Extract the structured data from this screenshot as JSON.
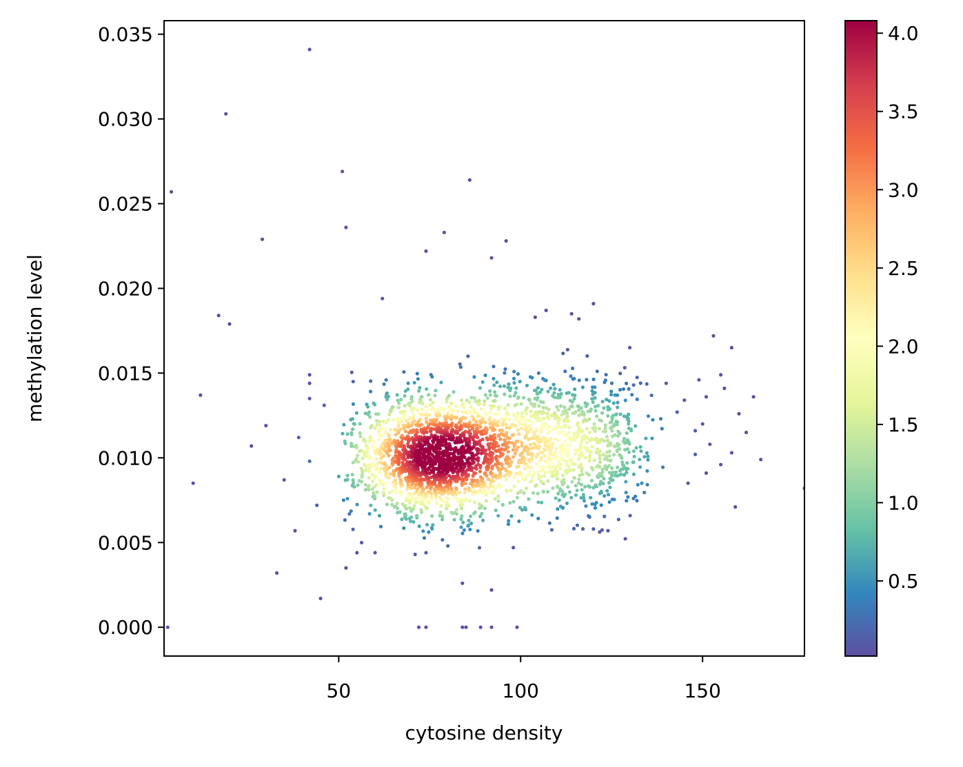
{
  "chart_data": {
    "type": "scatter",
    "title": "",
    "xlabel": "cytosine density",
    "ylabel": "methylation level",
    "xlim": [
      2,
      178
    ],
    "ylim": [
      -0.0017,
      0.0358
    ],
    "x_ticks": [
      50,
      100,
      150
    ],
    "y_ticks": [
      0.0,
      0.005,
      0.01,
      0.015,
      0.02,
      0.025,
      0.03,
      0.035
    ],
    "x_tick_labels": [
      "50",
      "100",
      "150"
    ],
    "y_tick_labels": [
      "0.000",
      "0.005",
      "0.010",
      "0.015",
      "0.020",
      "0.025",
      "0.030",
      "0.035"
    ],
    "grid": false,
    "colorbar": {
      "label": "",
      "colormap": "Spectral_r",
      "range": [
        0.02,
        4.08
      ],
      "ticks": [
        0.5,
        1.0,
        1.5,
        2.0,
        2.5,
        3.0,
        3.5,
        4.0
      ],
      "tick_labels": [
        "0.5",
        "1.0",
        "1.5",
        "2.0",
        "2.5",
        "3.0",
        "3.5",
        "4.0"
      ],
      "colors": [
        "#5e4fa2",
        "#3288bd",
        "#66c2a5",
        "#abdda4",
        "#e6f598",
        "#ffffbf",
        "#fee08b",
        "#fdae61",
        "#f46d43",
        "#d53e4f",
        "#9e0142"
      ]
    },
    "density_mode": {
      "x": 76,
      "y": 0.0101,
      "density": 4.08
    },
    "dense_cloud_point_count": 2900,
    "outlier_points": [
      [
        42,
        0.0341
      ],
      [
        19,
        0.0303
      ],
      [
        4,
        0.0257
      ],
      [
        51,
        0.0269
      ],
      [
        86,
        0.0264
      ],
      [
        52,
        0.0236
      ],
      [
        29,
        0.0229
      ],
      [
        79,
        0.0233
      ],
      [
        96,
        0.0228
      ],
      [
        74,
        0.0222
      ],
      [
        92,
        0.0218
      ],
      [
        62,
        0.0194
      ],
      [
        120,
        0.0191
      ],
      [
        107,
        0.0187
      ],
      [
        114,
        0.0185
      ],
      [
        104,
        0.0183
      ],
      [
        116,
        0.0182
      ],
      [
        17,
        0.0184
      ],
      [
        20,
        0.0179
      ],
      [
        153,
        0.0172
      ],
      [
        158,
        0.0165
      ],
      [
        130,
        0.0165
      ],
      [
        12,
        0.0137
      ],
      [
        42,
        0.0149
      ],
      [
        42,
        0.0144
      ],
      [
        42,
        0.0135
      ],
      [
        46,
        0.0131
      ],
      [
        140,
        0.0144
      ],
      [
        145,
        0.0134
      ],
      [
        143,
        0.0127
      ],
      [
        150,
        0.012
      ],
      [
        155,
        0.0149
      ],
      [
        149,
        0.0146
      ],
      [
        151,
        0.0136
      ],
      [
        156,
        0.0141
      ],
      [
        164,
        0.0136
      ],
      [
        160,
        0.0126
      ],
      [
        148,
        0.0116
      ],
      [
        152,
        0.0108
      ],
      [
        155,
        0.0096
      ],
      [
        158,
        0.0103
      ],
      [
        162,
        0.0115
      ],
      [
        166,
        0.0099
      ],
      [
        148,
        0.0102
      ],
      [
        151,
        0.0091
      ],
      [
        146,
        0.0085
      ],
      [
        178,
        0.0082
      ],
      [
        159,
        0.0071
      ],
      [
        39,
        0.0112
      ],
      [
        30,
        0.0119
      ],
      [
        26,
        0.0107
      ],
      [
        42,
        0.0098
      ],
      [
        35,
        0.0087
      ],
      [
        10,
        0.0085
      ],
      [
        44,
        0.0072
      ],
      [
        38,
        0.0057
      ],
      [
        33,
        0.0032
      ],
      [
        45,
        0.0017
      ],
      [
        50,
        0.0089
      ],
      [
        52,
        0.0035
      ],
      [
        55,
        0.0044
      ],
      [
        60,
        0.0044
      ],
      [
        71,
        0.0043
      ],
      [
        74,
        0.0044
      ],
      [
        80,
        0.0048
      ],
      [
        84,
        0.0026
      ],
      [
        92,
        0.0022
      ],
      [
        98,
        0.0047
      ],
      [
        120,
        0.0058
      ],
      [
        124,
        0.0057
      ],
      [
        131,
        0.0076
      ],
      [
        3,
        0.0
      ],
      [
        72,
        0.0
      ],
      [
        74,
        0.0
      ],
      [
        84,
        0.0
      ],
      [
        85,
        0.0
      ],
      [
        89,
        0.0
      ],
      [
        92,
        0.0
      ],
      [
        99,
        0.0
      ]
    ]
  }
}
